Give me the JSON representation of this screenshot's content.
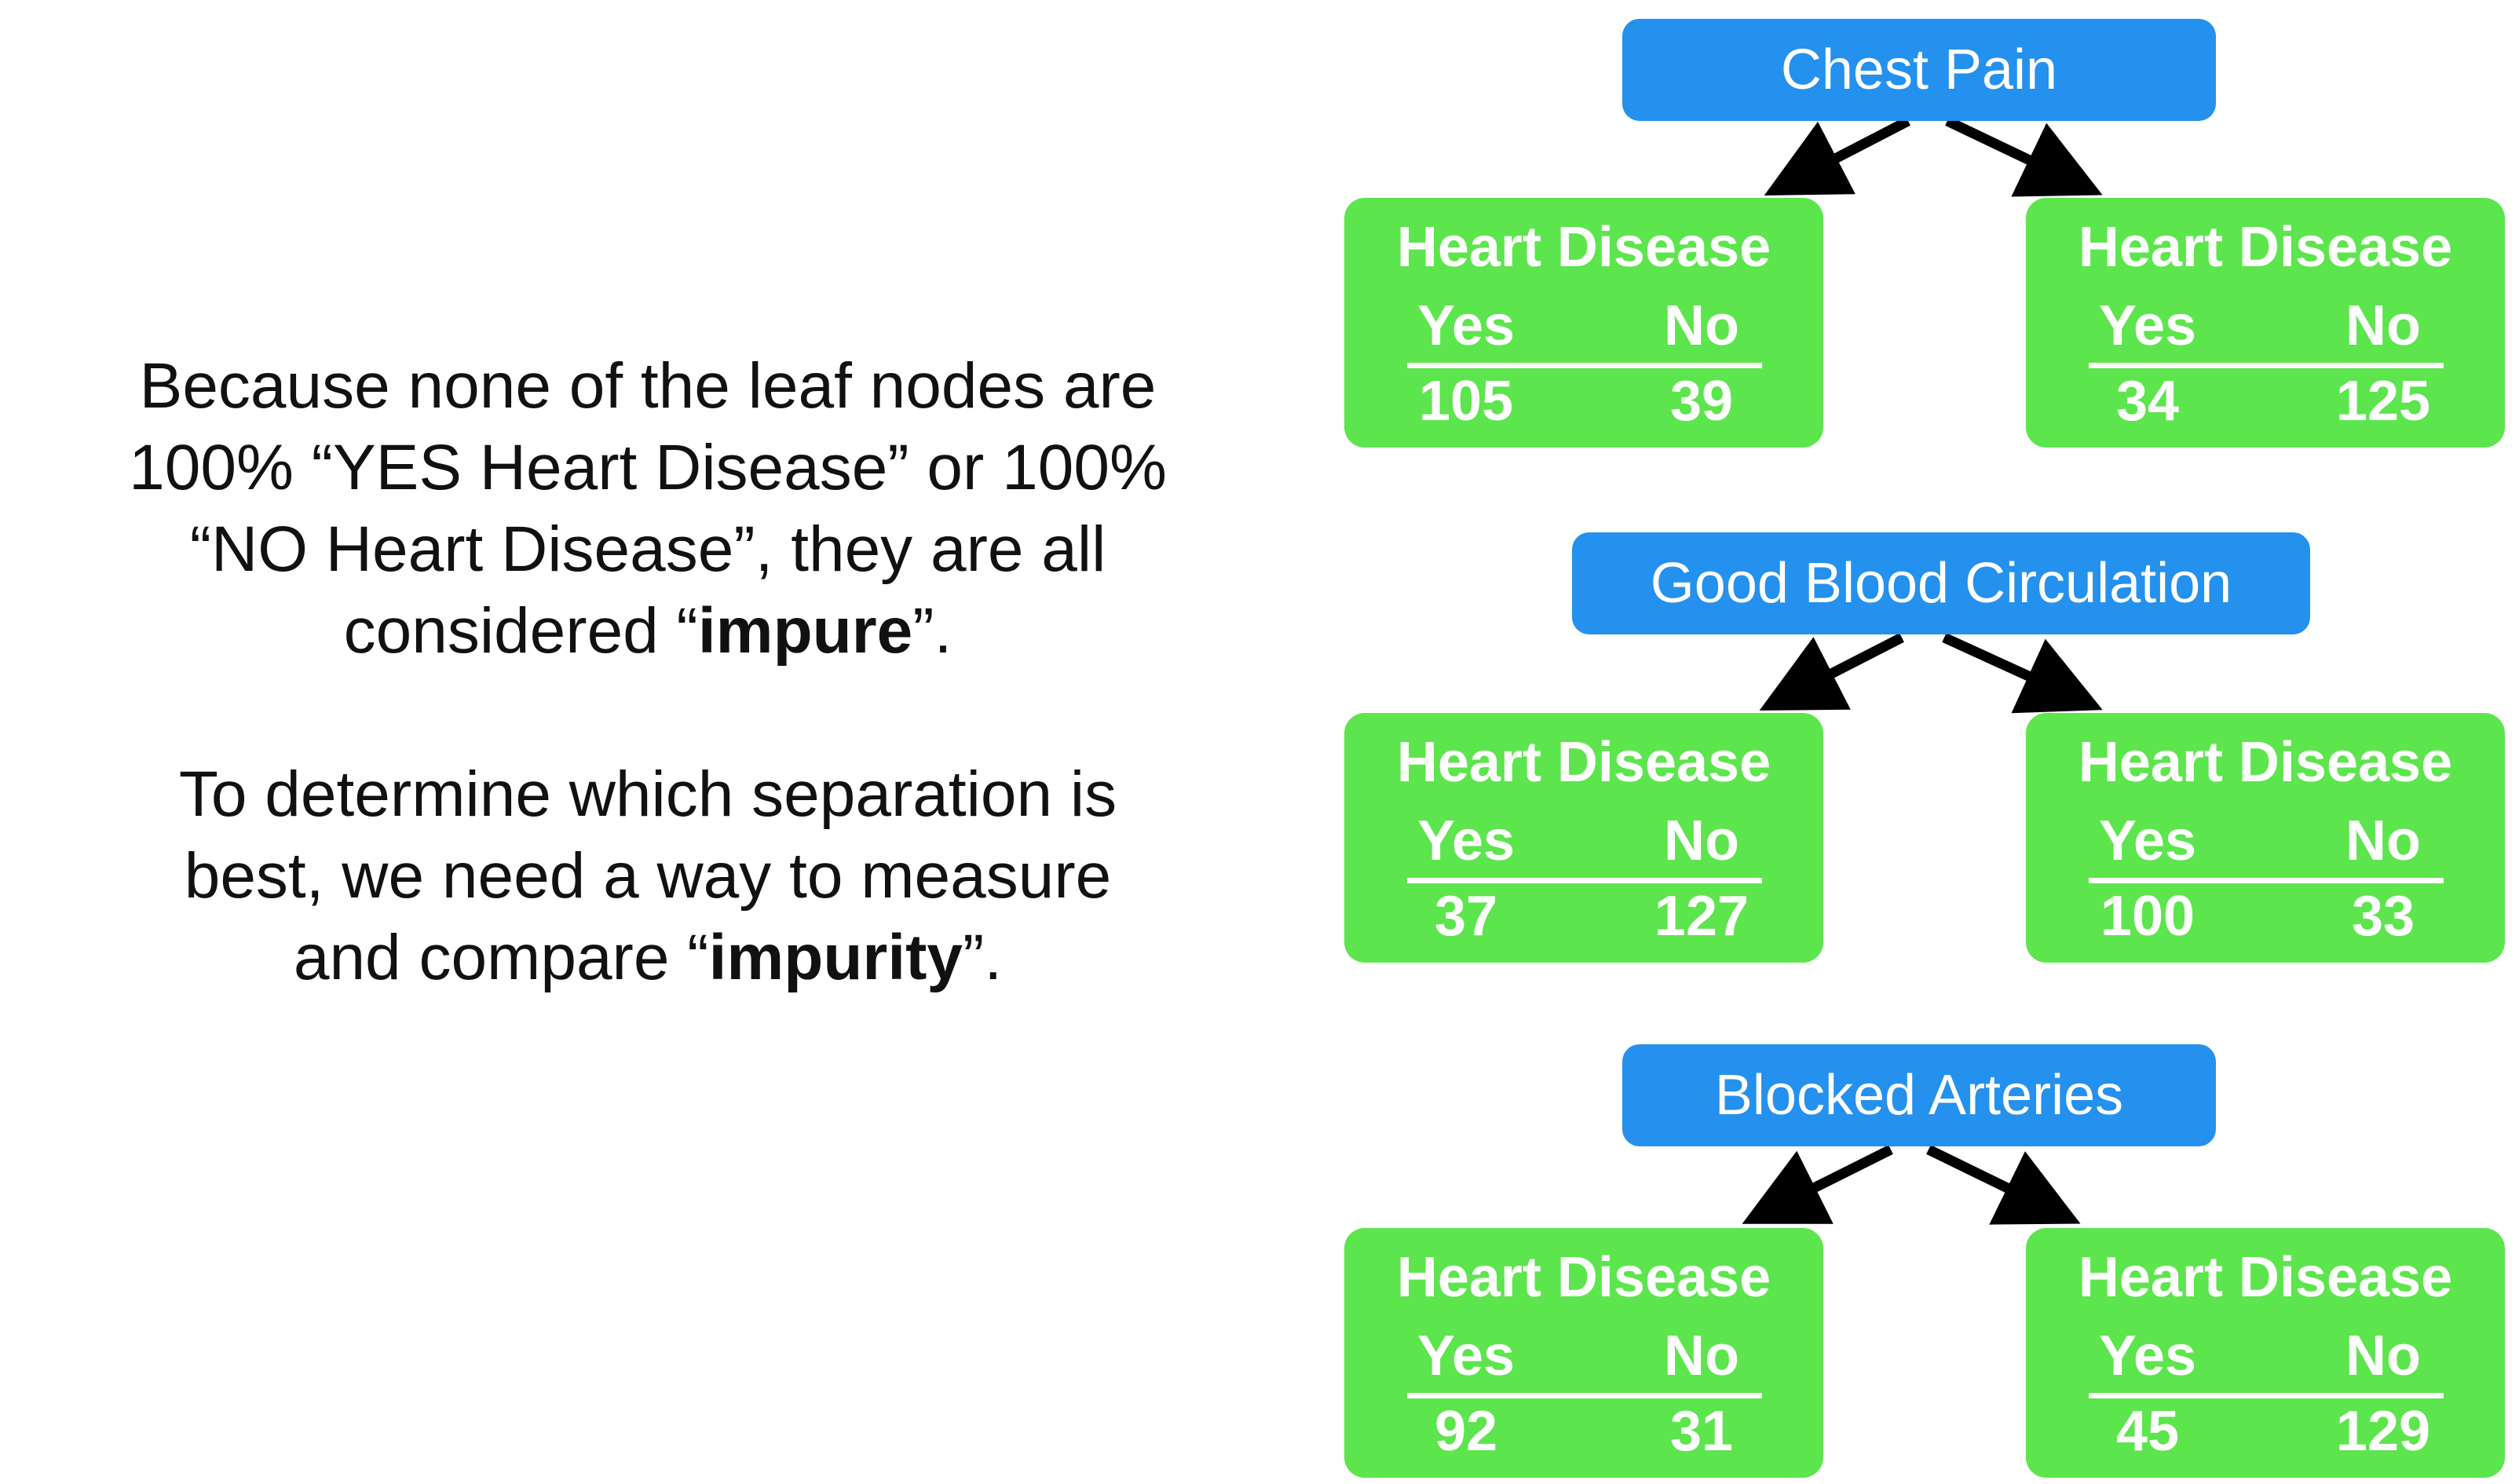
{
  "explanation": {
    "para1_text": "Because none of the leaf nodes are 100% “YES Heart Disease” or 100% “NO Heart Disease”, they are all considered “",
    "para1_bold": "impure",
    "para1_end": "”.",
    "para2_text": "To determine which separation is best, we need a way to measure and compare “",
    "para2_bold": "impurity",
    "para2_end": "”."
  },
  "trees": [
    {
      "root": "Chest Pain",
      "leaves": [
        {
          "title": "Heart Disease",
          "yes_label": "Yes",
          "no_label": "No",
          "yes": "105",
          "no": "39"
        },
        {
          "title": "Heart Disease",
          "yes_label": "Yes",
          "no_label": "No",
          "yes": "34",
          "no": "125"
        }
      ]
    },
    {
      "root": "Good Blood Circulation",
      "leaves": [
        {
          "title": "Heart Disease",
          "yes_label": "Yes",
          "no_label": "No",
          "yes": "37",
          "no": "127"
        },
        {
          "title": "Heart Disease",
          "yes_label": "Yes",
          "no_label": "No",
          "yes": "100",
          "no": "33"
        }
      ]
    },
    {
      "root": "Blocked Arteries",
      "leaves": [
        {
          "title": "Heart Disease",
          "yes_label": "Yes",
          "no_label": "No",
          "yes": "92",
          "no": "31"
        },
        {
          "title": "Heart Disease",
          "yes_label": "Yes",
          "no_label": "No",
          "yes": "45",
          "no": "129"
        }
      ]
    }
  ],
  "colors": {
    "root_blue": "#2491ee",
    "leaf_green": "#5de54d",
    "arrow": "#000000",
    "text": "#111111"
  }
}
